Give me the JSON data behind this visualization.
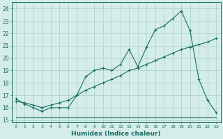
{
  "xlabel": "Humidex (Indice chaleur)",
  "bg_color": "#d4ede8",
  "grid_color": "#aed4cc",
  "line_color": "#1a6b64",
  "xlim": [
    -0.5,
    23.5
  ],
  "ylim": [
    14.8,
    24.5
  ],
  "yticks": [
    15,
    16,
    17,
    18,
    19,
    20,
    21,
    22,
    23,
    24
  ],
  "xticks": [
    0,
    1,
    2,
    3,
    4,
    5,
    6,
    7,
    8,
    9,
    10,
    11,
    12,
    13,
    14,
    15,
    16,
    17,
    18,
    19,
    20,
    21,
    22,
    23
  ],
  "series1_x": [
    0,
    1,
    2,
    3,
    4,
    5,
    6,
    7,
    8,
    9,
    10,
    11,
    12,
    13,
    14,
    15,
    16,
    17,
    18,
    19,
    20,
    21,
    22,
    23
  ],
  "series1_y": [
    16.7,
    16.3,
    16.0,
    15.7,
    16.0,
    16.0,
    16.0,
    17.0,
    18.5,
    19.0,
    19.2,
    19.0,
    19.5,
    20.7,
    19.3,
    20.9,
    22.3,
    22.6,
    23.2,
    23.8,
    22.2,
    18.3,
    16.6,
    15.6
  ],
  "series2_x": [
    0,
    1,
    2,
    3,
    4,
    5,
    6,
    7,
    8,
    9,
    10,
    11,
    12,
    13,
    14,
    15,
    16,
    17,
    18,
    19,
    20,
    21,
    22,
    23
  ],
  "series2_y": [
    16.5,
    16.4,
    16.2,
    16.0,
    16.2,
    16.4,
    16.6,
    17.0,
    17.4,
    17.7,
    18.0,
    18.3,
    18.6,
    19.0,
    19.2,
    19.5,
    19.8,
    20.1,
    20.4,
    20.7,
    20.9,
    21.1,
    21.3,
    21.6
  ],
  "series3_x": [
    0,
    14,
    20,
    23
  ],
  "series3_y": [
    15.2,
    15.2,
    15.2,
    15.2
  ]
}
